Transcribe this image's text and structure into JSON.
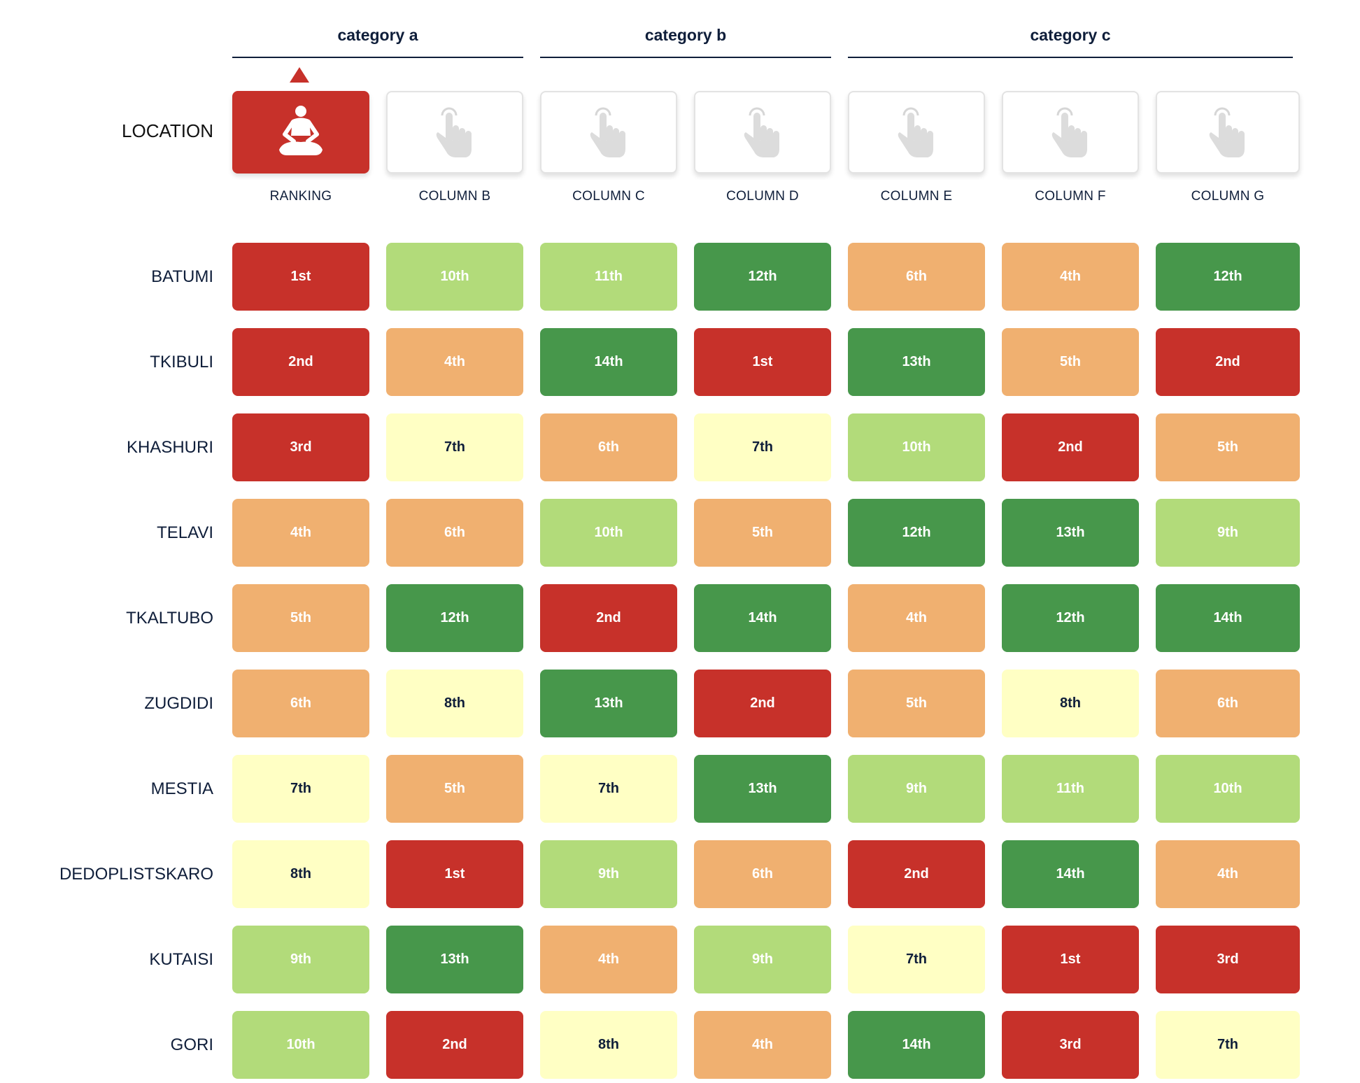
{
  "categories": [
    "category a",
    "category b",
    "category c"
  ],
  "location_header": "LOCATION",
  "columns": [
    {
      "label": "RANKING",
      "icon": "meditation-icon",
      "active": true
    },
    {
      "label": "COLUMN B",
      "icon": "tap-hand-icon",
      "active": false
    },
    {
      "label": "COLUMN C",
      "icon": "tap-hand-icon",
      "active": false
    },
    {
      "label": "COLUMN D",
      "icon": "tap-hand-icon",
      "active": false
    },
    {
      "label": "COLUMN E",
      "icon": "tap-hand-icon",
      "active": false
    },
    {
      "label": "COLUMN F",
      "icon": "tap-hand-icon",
      "active": false
    },
    {
      "label": "COLUMN G",
      "icon": "tap-hand-icon",
      "active": false
    }
  ],
  "sort_indicator": "ascending",
  "colors": {
    "tier_1": "#c7312a",
    "tier_2": "#f0b070",
    "tier_3": "#ffffc4",
    "tier_4": "#b2db7a",
    "tier_5": "#47974b",
    "text_dark": "#0f1e3a"
  },
  "rows": [
    {
      "location": "BATUMI",
      "cells": [
        {
          "text": "1st",
          "tier": 1
        },
        {
          "text": "10th",
          "tier": 4
        },
        {
          "text": "11th",
          "tier": 4
        },
        {
          "text": "12th",
          "tier": 5
        },
        {
          "text": "6th",
          "tier": 2
        },
        {
          "text": "4th",
          "tier": 2
        },
        {
          "text": "12th",
          "tier": 5
        }
      ]
    },
    {
      "location": "TKIBULI",
      "cells": [
        {
          "text": "2nd",
          "tier": 1
        },
        {
          "text": "4th",
          "tier": 2
        },
        {
          "text": "14th",
          "tier": 5
        },
        {
          "text": "1st",
          "tier": 1
        },
        {
          "text": "13th",
          "tier": 5
        },
        {
          "text": "5th",
          "tier": 2
        },
        {
          "text": "2nd",
          "tier": 1
        }
      ]
    },
    {
      "location": "KHASHURI",
      "cells": [
        {
          "text": "3rd",
          "tier": 1
        },
        {
          "text": "7th",
          "tier": 3
        },
        {
          "text": "6th",
          "tier": 2
        },
        {
          "text": "7th",
          "tier": 3
        },
        {
          "text": "10th",
          "tier": 4
        },
        {
          "text": "2nd",
          "tier": 1
        },
        {
          "text": "5th",
          "tier": 2
        }
      ]
    },
    {
      "location": "TELAVI",
      "cells": [
        {
          "text": "4th",
          "tier": 2
        },
        {
          "text": "6th",
          "tier": 2
        },
        {
          "text": "10th",
          "tier": 4
        },
        {
          "text": "5th",
          "tier": 2
        },
        {
          "text": "12th",
          "tier": 5
        },
        {
          "text": "13th",
          "tier": 5
        },
        {
          "text": "9th",
          "tier": 4
        }
      ]
    },
    {
      "location": "TKALTUBO",
      "cells": [
        {
          "text": "5th",
          "tier": 2
        },
        {
          "text": "12th",
          "tier": 5
        },
        {
          "text": "2nd",
          "tier": 1
        },
        {
          "text": "14th",
          "tier": 5
        },
        {
          "text": "4th",
          "tier": 2
        },
        {
          "text": "12th",
          "tier": 5
        },
        {
          "text": "14th",
          "tier": 5
        }
      ]
    },
    {
      "location": "ZUGDIDI",
      "cells": [
        {
          "text": "6th",
          "tier": 2
        },
        {
          "text": "8th",
          "tier": 3
        },
        {
          "text": "13th",
          "tier": 5
        },
        {
          "text": "2nd",
          "tier": 1
        },
        {
          "text": "5th",
          "tier": 2
        },
        {
          "text": "8th",
          "tier": 3
        },
        {
          "text": "6th",
          "tier": 2
        }
      ]
    },
    {
      "location": "MESTIA",
      "cells": [
        {
          "text": "7th",
          "tier": 3
        },
        {
          "text": "5th",
          "tier": 2
        },
        {
          "text": "7th",
          "tier": 3
        },
        {
          "text": "13th",
          "tier": 5
        },
        {
          "text": "9th",
          "tier": 4
        },
        {
          "text": "11th",
          "tier": 4
        },
        {
          "text": "10th",
          "tier": 4
        }
      ]
    },
    {
      "location": "DEDOPLISTSKARO",
      "cells": [
        {
          "text": "8th",
          "tier": 3
        },
        {
          "text": "1st",
          "tier": 1
        },
        {
          "text": "9th",
          "tier": 4
        },
        {
          "text": "6th",
          "tier": 2
        },
        {
          "text": "2nd",
          "tier": 1
        },
        {
          "text": "14th",
          "tier": 5
        },
        {
          "text": "4th",
          "tier": 2
        }
      ]
    },
    {
      "location": "KUTAISI",
      "cells": [
        {
          "text": "9th",
          "tier": 4
        },
        {
          "text": "13th",
          "tier": 5
        },
        {
          "text": "4th",
          "tier": 2
        },
        {
          "text": "9th",
          "tier": 4
        },
        {
          "text": "7th",
          "tier": 3
        },
        {
          "text": "1st",
          "tier": 1
        },
        {
          "text": "3rd",
          "tier": 1
        }
      ]
    },
    {
      "location": "GORI",
      "cells": [
        {
          "text": "10th",
          "tier": 4
        },
        {
          "text": "2nd",
          "tier": 1
        },
        {
          "text": "8th",
          "tier": 3
        },
        {
          "text": "4th",
          "tier": 2
        },
        {
          "text": "14th",
          "tier": 5
        },
        {
          "text": "3rd",
          "tier": 1
        },
        {
          "text": "7th",
          "tier": 3
        }
      ]
    }
  ]
}
